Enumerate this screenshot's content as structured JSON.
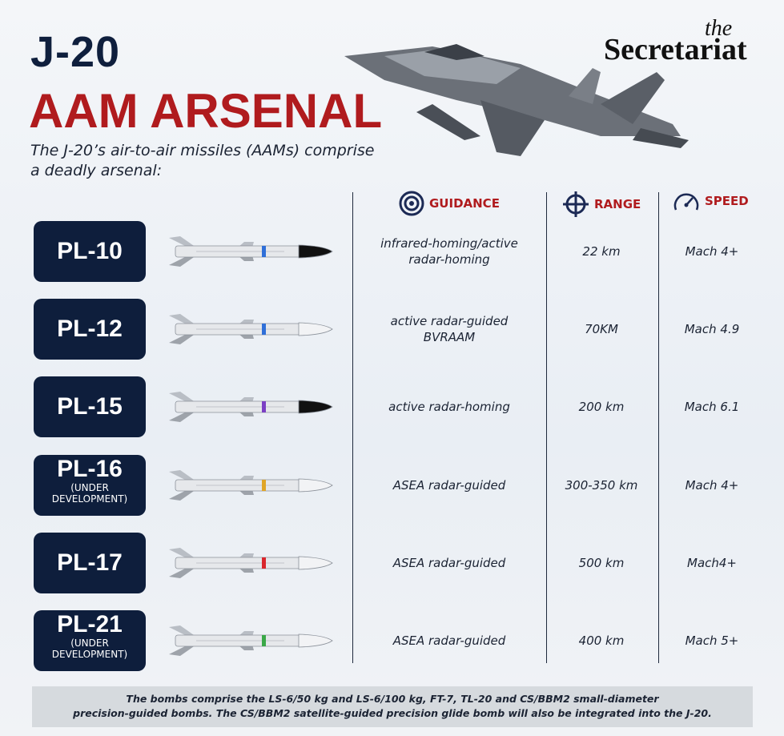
{
  "header": {
    "title": "J-20",
    "subtitle": "AAM ARSENAL",
    "description": [
      "The J-20’s air-to-air missiles (AAMs) comprise",
      "a deadly arsenal:"
    ]
  },
  "brand": {
    "small": "the",
    "name": "Secretariat"
  },
  "columns": [
    "GUIDANCE",
    "RANGE",
    "SPEED"
  ],
  "rows": [
    {
      "name": "PL-10",
      "guidance": [
        "infrared-homing/active",
        "radar-homing"
      ],
      "range": "22 km",
      "speed": "Mach 4+",
      "band": "#2f6fd8",
      "nose": "#111111"
    },
    {
      "name": "PL-12",
      "guidance": [
        "active radar-guided",
        "BVRAAM"
      ],
      "range": "70KM",
      "speed": "Mach 4.9",
      "band": "#2f6fd8",
      "nose": "#f2f3f5"
    },
    {
      "name": "PL-15",
      "guidance": [
        "active radar-homing"
      ],
      "range": "200 km",
      "speed": "Mach 6.1",
      "band": "#7b3fc4",
      "nose": "#111111"
    },
    {
      "name": "PL-16",
      "note": [
        "(UNDER",
        "DEVELOPMENT)"
      ],
      "guidance": [
        "ASEA radar-guided"
      ],
      "range": "300-350 km",
      "speed": "Mach 4+",
      "band": "#e0a526",
      "nose": "#f2f3f5"
    },
    {
      "name": "PL-17",
      "guidance": [
        "ASEA radar-guided"
      ],
      "range": "500 km",
      "speed": "Mach4+",
      "band": "#d9262c",
      "nose": "#f2f3f5"
    },
    {
      "name": "PL-21",
      "note": [
        "(UNDER",
        "DEVELOPMENT)"
      ],
      "guidance": [
        "ASEA radar-guided"
      ],
      "range": "400 km",
      "speed": "Mach 5+",
      "band": "#3aa848",
      "nose": "#f2f3f5"
    }
  ],
  "footer": [
    "The bombs comprise the LS-6/50 kg and LS-6/100 kg, FT-7, TL-20 and CS/BBM2 small-diameter",
    "precision-guided bombs. The CS/BBM2 satellite-guided precision glide bomb will also be integrated into the J-20."
  ]
}
